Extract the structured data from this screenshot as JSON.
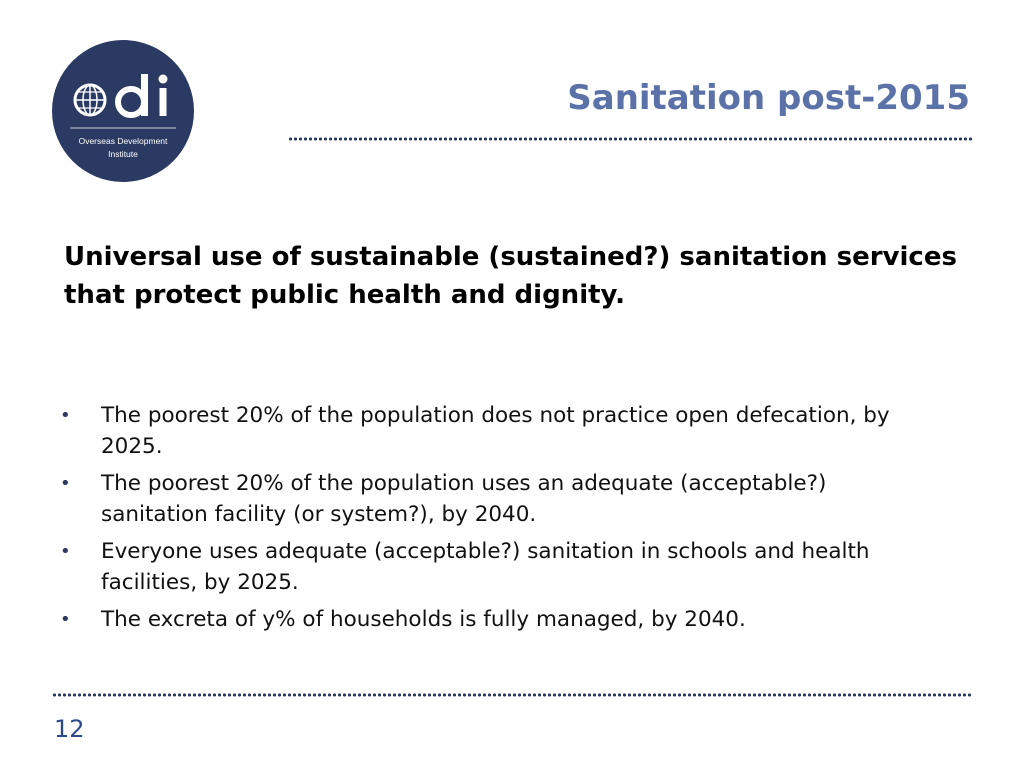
{
  "logo": {
    "wordmark": "odi",
    "org_name": "Overseas Development Institute",
    "org_line1": "Overseas Development",
    "org_line2": "Institute",
    "bg_color": "#2b3a62"
  },
  "slide": {
    "title": "Sanitation post-2015",
    "heading": "Universal use of sustainable (sustained?) sanitation services that protect public health and dignity.",
    "bullets": [
      {
        "marker": "•",
        "text": "The poorest 20% of the population does not practice open defecation, by 2025."
      },
      {
        "marker": "•",
        "text": "The poorest 20% of the population uses an adequate (acceptable?) sanitation facility (or system?), by 2040."
      },
      {
        "marker": "•",
        "text": "Everyone uses adequate (acceptable?) sanitation in schools and health facilities, by 2025."
      },
      {
        "marker": "•",
        "text": "The excreta of y% of households is fully managed, by 2040."
      }
    ],
    "page_number": "12"
  },
  "colors": {
    "title": "#5a72a8",
    "navy": "#2b3a62",
    "page_number": "#2b4a8a"
  }
}
